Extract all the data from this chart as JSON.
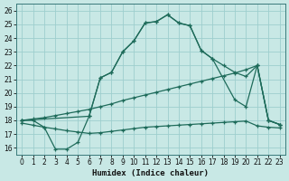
{
  "xlabel": "Humidex (Indice chaleur)",
  "background_color": "#c8e8e5",
  "grid_color": "#9ecece",
  "line_color": "#1e6b5a",
  "xlim": [
    -0.5,
    23.5
  ],
  "ylim": [
    15.5,
    26.5
  ],
  "xticks": [
    0,
    1,
    2,
    3,
    4,
    5,
    6,
    7,
    8,
    9,
    10,
    11,
    12,
    13,
    14,
    15,
    16,
    17,
    18,
    19,
    20,
    21,
    22,
    23
  ],
  "yticks": [
    16,
    17,
    18,
    19,
    20,
    21,
    22,
    23,
    24,
    25,
    26
  ],
  "line_peak_x": [
    0,
    1,
    2,
    3,
    4,
    5,
    6,
    7,
    8,
    9,
    10,
    11,
    12,
    13,
    14,
    15,
    16,
    17,
    19,
    20,
    21,
    22,
    23
  ],
  "line_peak_y": [
    18.0,
    18.0,
    17.5,
    15.9,
    15.9,
    16.4,
    18.3,
    21.1,
    21.5,
    23.0,
    23.8,
    25.1,
    25.2,
    25.7,
    25.1,
    24.9,
    23.1,
    22.5,
    19.5,
    19.0,
    22.0,
    18.0,
    17.7
  ],
  "line_upper_x": [
    0,
    6,
    7,
    8,
    9,
    10,
    11,
    12,
    13,
    14,
    15,
    16,
    17,
    18,
    19,
    20,
    21,
    22,
    23
  ],
  "line_upper_y": [
    18.0,
    18.3,
    21.1,
    21.5,
    23.0,
    23.8,
    25.1,
    25.2,
    25.7,
    25.1,
    24.9,
    23.1,
    22.5,
    22.0,
    21.5,
    21.2,
    22.0,
    18.0,
    17.7
  ],
  "line_mid_x": [
    0,
    1,
    2,
    3,
    4,
    5,
    6,
    7,
    8,
    9,
    10,
    11,
    12,
    13,
    14,
    15,
    16,
    17,
    18,
    19,
    20,
    21,
    22,
    23
  ],
  "line_mid_y": [
    18.0,
    18.1,
    18.2,
    18.35,
    18.5,
    18.65,
    18.8,
    19.0,
    19.2,
    19.45,
    19.65,
    19.85,
    20.05,
    20.25,
    20.45,
    20.65,
    20.85,
    21.05,
    21.25,
    21.45,
    21.7,
    22.0,
    18.0,
    17.7
  ],
  "line_low_x": [
    0,
    1,
    2,
    3,
    4,
    5,
    6,
    7,
    8,
    9,
    10,
    11,
    12,
    13,
    14,
    15,
    16,
    17,
    18,
    19,
    20,
    21,
    22,
    23
  ],
  "line_low_y": [
    17.8,
    17.65,
    17.5,
    17.38,
    17.25,
    17.15,
    17.05,
    17.1,
    17.2,
    17.3,
    17.4,
    17.5,
    17.55,
    17.6,
    17.65,
    17.7,
    17.75,
    17.8,
    17.85,
    17.9,
    17.95,
    17.6,
    17.5,
    17.45
  ]
}
